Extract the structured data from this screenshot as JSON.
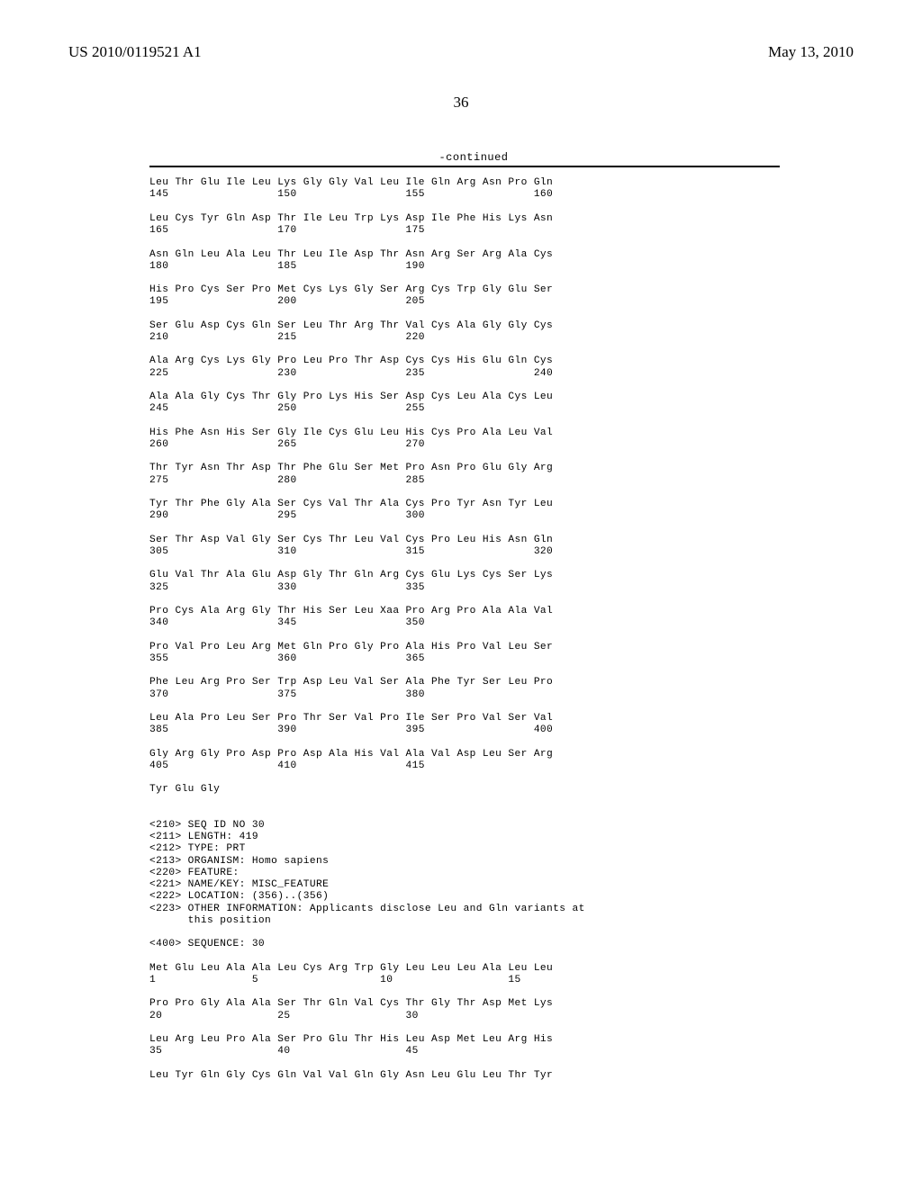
{
  "header": {
    "pub_number": "US 2010/0119521 A1",
    "pub_date": "May 13, 2010"
  },
  "page_number": "36",
  "continued_label": "-continued",
  "seq_rows": [
    {
      "aa": "Leu Thr Glu Ile Leu Lys Gly Gly Val Leu Ile Gln Arg Asn Pro Gln",
      "nm": "145                 150                 155                 160"
    },
    {
      "aa": "Leu Cys Tyr Gln Asp Thr Ile Leu Trp Lys Asp Ile Phe His Lys Asn",
      "nm": "165                 170                 175"
    },
    {
      "aa": "Asn Gln Leu Ala Leu Thr Leu Ile Asp Thr Asn Arg Ser Arg Ala Cys",
      "nm": "180                 185                 190"
    },
    {
      "aa": "His Pro Cys Ser Pro Met Cys Lys Gly Ser Arg Cys Trp Gly Glu Ser",
      "nm": "195                 200                 205"
    },
    {
      "aa": "Ser Glu Asp Cys Gln Ser Leu Thr Arg Thr Val Cys Ala Gly Gly Cys",
      "nm": "210                 215                 220"
    },
    {
      "aa": "Ala Arg Cys Lys Gly Pro Leu Pro Thr Asp Cys Cys His Glu Gln Cys",
      "nm": "225                 230                 235                 240"
    },
    {
      "aa": "Ala Ala Gly Cys Thr Gly Pro Lys His Ser Asp Cys Leu Ala Cys Leu",
      "nm": "245                 250                 255"
    },
    {
      "aa": "His Phe Asn His Ser Gly Ile Cys Glu Leu His Cys Pro Ala Leu Val",
      "nm": "260                 265                 270"
    },
    {
      "aa": "Thr Tyr Asn Thr Asp Thr Phe Glu Ser Met Pro Asn Pro Glu Gly Arg",
      "nm": "275                 280                 285"
    },
    {
      "aa": "Tyr Thr Phe Gly Ala Ser Cys Val Thr Ala Cys Pro Tyr Asn Tyr Leu",
      "nm": "290                 295                 300"
    },
    {
      "aa": "Ser Thr Asp Val Gly Ser Cys Thr Leu Val Cys Pro Leu His Asn Gln",
      "nm": "305                 310                 315                 320"
    },
    {
      "aa": "Glu Val Thr Ala Glu Asp Gly Thr Gln Arg Cys Glu Lys Cys Ser Lys",
      "nm": "325                 330                 335"
    },
    {
      "aa": "Pro Cys Ala Arg Gly Thr His Ser Leu Xaa Pro Arg Pro Ala Ala Val",
      "nm": "340                 345                 350"
    },
    {
      "aa": "Pro Val Pro Leu Arg Met Gln Pro Gly Pro Ala His Pro Val Leu Ser",
      "nm": "355                 360                 365"
    },
    {
      "aa": "Phe Leu Arg Pro Ser Trp Asp Leu Val Ser Ala Phe Tyr Ser Leu Pro",
      "nm": "370                 375                 380"
    },
    {
      "aa": "Leu Ala Pro Leu Ser Pro Thr Ser Val Pro Ile Ser Pro Val Ser Val",
      "nm": "385                 390                 395                 400"
    },
    {
      "aa": "Gly Arg Gly Pro Asp Pro Asp Ala His Val Ala Val Asp Leu Ser Arg",
      "nm": "405                 410                 415"
    },
    {
      "aa": "Tyr Glu Gly",
      "nm": ""
    }
  ],
  "seq_header": [
    "<210> SEQ ID NO 30",
    "<211> LENGTH: 419",
    "<212> TYPE: PRT",
    "<213> ORGANISM: Homo sapiens",
    "<220> FEATURE:",
    "<221> NAME/KEY: MISC_FEATURE",
    "<222> LOCATION: (356)..(356)",
    "<223> OTHER INFORMATION: Applicants disclose Leu and Gln variants at",
    "      this position",
    "",
    "<400> SEQUENCE: 30"
  ],
  "seq_rows2": [
    {
      "aa": "Met Glu Leu Ala Ala Leu Cys Arg Trp Gly Leu Leu Leu Ala Leu Leu",
      "nm": "1               5                   10                  15"
    },
    {
      "aa": "Pro Pro Gly Ala Ala Ser Thr Gln Val Cys Thr Gly Thr Asp Met Lys",
      "nm": "20                  25                  30"
    },
    {
      "aa": "Leu Arg Leu Pro Ala Ser Pro Glu Thr His Leu Asp Met Leu Arg His",
      "nm": "35                  40                  45"
    },
    {
      "aa": "Leu Tyr Gln Gly Cys Gln Val Val Gln Gly Asn Leu Glu Leu Thr Tyr",
      "nm": ""
    }
  ]
}
